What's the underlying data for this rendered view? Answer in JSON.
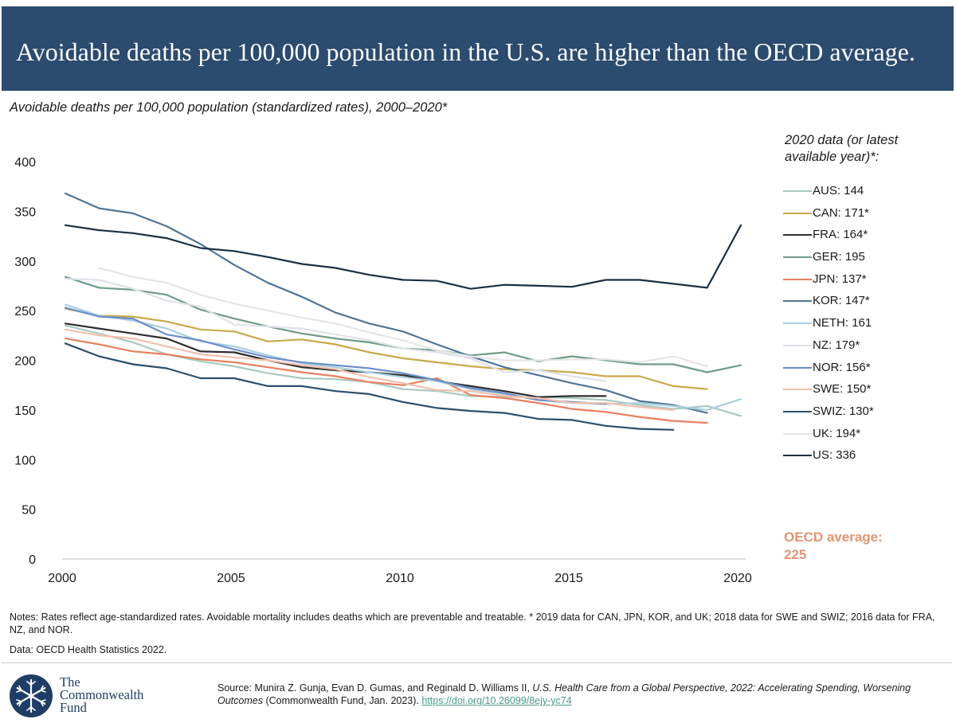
{
  "header": {
    "title": "Avoidable deaths per 100,000 population in the U.S. are higher than the OECD average."
  },
  "subtitle": "Avoidable deaths per 100,000 population (standardized rates), 2000–2020*",
  "legend_title": "2020 data (or latest available year)*:",
  "oecd_average_label": "OECD average:",
  "oecd_average_value": "225",
  "notes": {
    "line1": "Notes: Rates reflect age-standardized rates. Avoidable mortality includes deaths which are preventable and treatable. * 2019 data for CAN, JPN, KOR, and UK; 2018 data for SWE and SWIZ; 2016 data for FRA, NZ, and NOR.",
    "line2": "Data: OECD Health Statistics 2022."
  },
  "logo": {
    "line1": "The",
    "line2": "Commonwealth",
    "line3": "Fund"
  },
  "source": {
    "prefix": "Source: Munira Z. Gunja, Evan D. Gumas, and Reginald D. Williams II, ",
    "title": "U.S. Health Care from a Global Perspective, 2022: Accelerating Spending, Worsening Outcomes",
    "suffix": " (Commonwealth Fund, Jan. 2023). ",
    "link": "https://doi.org/10.26099/8ejy-yc74"
  },
  "colors": {
    "header_bg": "#2b4b6f",
    "oecd_label": "#e49472",
    "axis": "#bfbfbf"
  },
  "chart_data": {
    "type": "line",
    "xlim": [
      2000,
      2020
    ],
    "ylim": [
      0,
      400
    ],
    "xticks": [
      2000,
      2005,
      2010,
      2015,
      2020
    ],
    "yticks": [
      0,
      50,
      100,
      150,
      200,
      250,
      300,
      350,
      400
    ],
    "grid": false,
    "legend_position": "right",
    "series": [
      {
        "name": "AUS",
        "legend": "AUS: 144",
        "color": "#a9c9c2",
        "x": [
          2000,
          2001,
          2002,
          2003,
          2004,
          2005,
          2006,
          2007,
          2008,
          2009,
          2010,
          2011,
          2012,
          2013,
          2014,
          2015,
          2016,
          2017,
          2018,
          2019,
          2020
        ],
        "values": [
          235,
          227,
          218,
          206,
          199,
          194,
          187,
          182,
          181,
          178,
          171,
          169,
          164,
          163,
          163,
          162,
          160,
          155,
          151,
          154,
          144
        ]
      },
      {
        "name": "CAN",
        "legend": "CAN: 171*",
        "color": "#c9a94a",
        "x": [
          2000,
          2001,
          2002,
          2003,
          2004,
          2005,
          2006,
          2007,
          2008,
          2009,
          2010,
          2011,
          2012,
          2013,
          2014,
          2015,
          2016,
          2017,
          2018,
          2019
        ],
        "values": [
          252,
          245,
          244,
          239,
          231,
          229,
          219,
          221,
          216,
          208,
          202,
          198,
          194,
          191,
          190,
          188,
          184,
          184,
          174,
          171
        ]
      },
      {
        "name": "FRA",
        "legend": "FRA: 164*",
        "color": "#2e2e2e",
        "x": [
          2000,
          2001,
          2002,
          2003,
          2004,
          2005,
          2006,
          2007,
          2008,
          2009,
          2010,
          2011,
          2012,
          2013,
          2014,
          2015,
          2016
        ],
        "values": [
          237,
          232,
          227,
          222,
          209,
          208,
          200,
          193,
          190,
          188,
          185,
          179,
          174,
          169,
          163,
          164,
          164
        ]
      },
      {
        "name": "GER",
        "legend": "GER: 195",
        "color": "#6f9c86",
        "x": [
          2000,
          2001,
          2002,
          2003,
          2004,
          2005,
          2006,
          2007,
          2008,
          2009,
          2010,
          2011,
          2012,
          2013,
          2014,
          2015,
          2016,
          2017,
          2018,
          2019,
          2020
        ],
        "values": [
          284,
          273,
          271,
          266,
          251,
          242,
          234,
          227,
          222,
          218,
          212,
          210,
          205,
          208,
          199,
          204,
          200,
          196,
          196,
          188,
          195
        ]
      },
      {
        "name": "JPN",
        "legend": "JPN: 137*",
        "color": "#e9805e",
        "x": [
          2000,
          2001,
          2002,
          2003,
          2004,
          2005,
          2006,
          2007,
          2008,
          2009,
          2010,
          2011,
          2012,
          2013,
          2014,
          2015,
          2016,
          2017,
          2018,
          2019
        ],
        "values": [
          222,
          216,
          209,
          206,
          201,
          198,
          193,
          188,
          184,
          178,
          175,
          182,
          165,
          162,
          157,
          151,
          148,
          143,
          139,
          137
        ]
      },
      {
        "name": "KOR",
        "legend": "KOR: 147*",
        "color": "#4f7596",
        "x": [
          2000,
          2001,
          2002,
          2003,
          2004,
          2005,
          2006,
          2007,
          2008,
          2009,
          2010,
          2011,
          2012,
          2013,
          2014,
          2015,
          2016,
          2017,
          2018,
          2019
        ],
        "values": [
          368,
          353,
          348,
          335,
          317,
          296,
          278,
          264,
          248,
          237,
          229,
          216,
          204,
          193,
          185,
          177,
          170,
          159,
          155,
          147
        ]
      },
      {
        "name": "NETH",
        "legend": "NETH: 161",
        "color": "#a9cfe0",
        "x": [
          2000,
          2001,
          2002,
          2003,
          2004,
          2005,
          2006,
          2007,
          2008,
          2009,
          2010,
          2011,
          2012,
          2013,
          2014,
          2015,
          2016,
          2017,
          2018,
          2019,
          2020
        ],
        "values": [
          256,
          245,
          240,
          232,
          219,
          214,
          205,
          197,
          193,
          188,
          183,
          179,
          171,
          166,
          160,
          157,
          156,
          157,
          154,
          150,
          161
        ]
      },
      {
        "name": "NZ",
        "legend": "NZ: 179*",
        "color": "#dfe2ea",
        "x": [
          2000,
          2001,
          2002,
          2003,
          2004,
          2005,
          2006,
          2007,
          2008,
          2009,
          2010,
          2011,
          2012,
          2013,
          2014,
          2015,
          2016
        ],
        "values": [
          282,
          281,
          272,
          260,
          254,
          236,
          234,
          232,
          226,
          220,
          212,
          208,
          202,
          188,
          190,
          184,
          179
        ]
      },
      {
        "name": "NOR",
        "legend": "NOR: 156*",
        "color": "#6b8fc7",
        "x": [
          2000,
          2001,
          2002,
          2003,
          2004,
          2005,
          2006,
          2007,
          2008,
          2009,
          2010,
          2011,
          2012,
          2013,
          2014,
          2015,
          2016
        ],
        "values": [
          253,
          244,
          242,
          226,
          220,
          211,
          203,
          198,
          195,
          192,
          187,
          180,
          172,
          167,
          160,
          158,
          156
        ]
      },
      {
        "name": "SWE",
        "legend": "SWE: 150*",
        "color": "#f2c0ad",
        "x": [
          2000,
          2001,
          2002,
          2003,
          2004,
          2005,
          2006,
          2007,
          2008,
          2009,
          2010,
          2011,
          2012,
          2013,
          2014,
          2015,
          2016,
          2017,
          2018
        ],
        "values": [
          231,
          225,
          222,
          214,
          206,
          203,
          200,
          195,
          191,
          183,
          177,
          170,
          169,
          164,
          162,
          157,
          157,
          153,
          150
        ]
      },
      {
        "name": "SWIZ",
        "legend": "SWIZ: 130*",
        "color": "#2a4f6d",
        "x": [
          2000,
          2001,
          2002,
          2003,
          2004,
          2005,
          2006,
          2007,
          2008,
          2009,
          2010,
          2011,
          2012,
          2013,
          2014,
          2015,
          2016,
          2017,
          2018
        ],
        "values": [
          217,
          204,
          196,
          192,
          182,
          182,
          174,
          174,
          169,
          166,
          158,
          152,
          149,
          147,
          141,
          140,
          134,
          131,
          130
        ]
      },
      {
        "name": "UK",
        "legend": "UK: 194*",
        "color": "#e5e5e5",
        "x": [
          2001,
          2002,
          2003,
          2004,
          2005,
          2006,
          2007,
          2008,
          2009,
          2010,
          2011,
          2012,
          2013,
          2014,
          2015,
          2016,
          2017,
          2018,
          2019
        ],
        "values": [
          293,
          284,
          278,
          266,
          257,
          250,
          243,
          237,
          228,
          220,
          210,
          204,
          200,
          200,
          201,
          201,
          198,
          204,
          194
        ]
      },
      {
        "name": "US",
        "legend": "US: 336",
        "color": "#1c2f44",
        "x": [
          2000,
          2001,
          2002,
          2003,
          2004,
          2005,
          2006,
          2007,
          2008,
          2009,
          2010,
          2011,
          2012,
          2013,
          2014,
          2015,
          2016,
          2017,
          2018,
          2019,
          2020
        ],
        "values": [
          336,
          331,
          328,
          323,
          313,
          310,
          304,
          297,
          293,
          286,
          281,
          280,
          272,
          276,
          275,
          274,
          281,
          281,
          277,
          273,
          336
        ]
      }
    ]
  }
}
